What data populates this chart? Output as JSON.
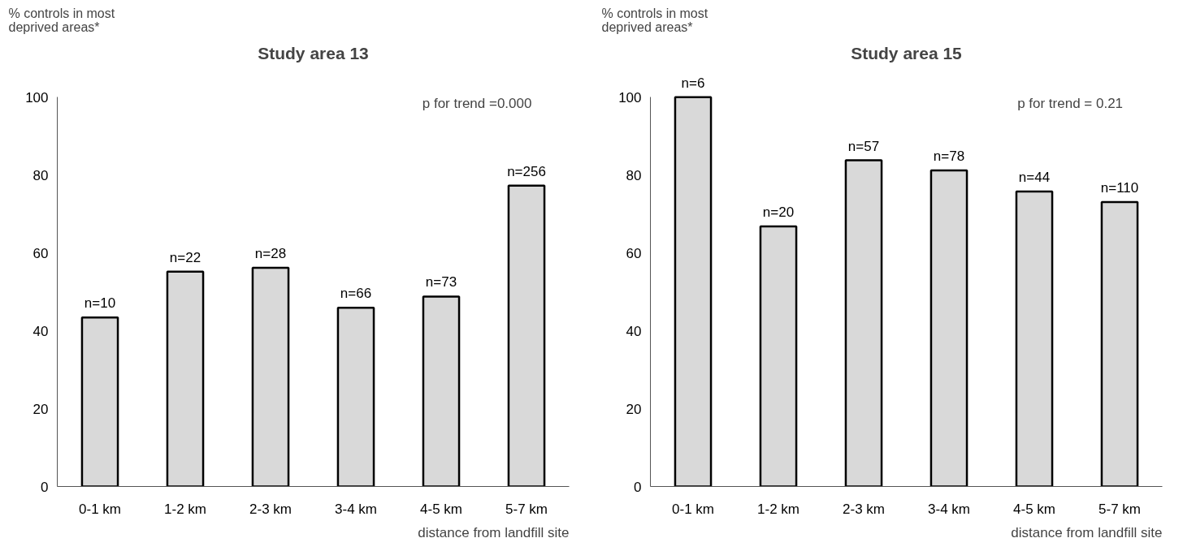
{
  "chart_data": [
    {
      "type": "bar",
      "title": "Study area 13",
      "ylabel": "% controls in most\ndeprived areas*",
      "xlabel": "distance from landfill site",
      "categories": [
        "0-1 km",
        "1-2 km",
        "2-3 km",
        "3-4 km",
        "4-5 km",
        "5-7 km"
      ],
      "values": [
        43.4,
        55.2,
        56.2,
        45.9,
        48.8,
        77.3
      ],
      "color": "#d9d9d9",
      "ylim": [
        0,
        100
      ],
      "yticks": [
        0,
        20,
        40,
        60,
        80,
        100
      ],
      "grid": false,
      "annotations": [
        "p for trend =0.000",
        {
          "text": "n=10",
          "x": "0-1 km",
          "y": 43.4
        },
        {
          "text": "n=22",
          "x": "1-2 km",
          "y": 55.2
        },
        {
          "text": "n=28",
          "x": "2-3 km",
          "y": 56.2
        },
        {
          "text": "n=66",
          "x": "3-4 km",
          "y": 45.9
        },
        {
          "text": "n=73",
          "x": "4-5 km",
          "y": 48.8
        },
        {
          "text": "n=256",
          "x": "5-7 km",
          "y": 77.3
        }
      ]
    },
    {
      "type": "bar",
      "title": "Study area 15",
      "ylabel": "% controls in most\ndeprived areas*",
      "xlabel": "distance from landfill site",
      "categories": [
        "0-1 km",
        "1-2 km",
        "2-3 km",
        "3-4 km",
        "4-5 km",
        "5-7 km"
      ],
      "values": [
        100,
        66.8,
        83.8,
        81.2,
        75.8,
        73.1
      ],
      "color": "#d9d9d9",
      "ylim": [
        0,
        100
      ],
      "yticks": [
        0,
        20,
        40,
        60,
        80,
        100
      ],
      "grid": false,
      "annotations": [
        "p for trend = 0.21",
        {
          "text": "n=6",
          "x": "0-1 km",
          "y": 100
        },
        {
          "text": "n=20",
          "x": "1-2 km",
          "y": 66.8
        },
        {
          "text": "n=57",
          "x": "2-3 km",
          "y": 83.8
        },
        {
          "text": "n=78",
          "x": "3-4 km",
          "y": 81.2
        },
        {
          "text": "n=44",
          "x": "4-5 km",
          "y": 75.8
        },
        {
          "text": "n=110",
          "x": "5-7 km",
          "y": 73.1
        }
      ]
    }
  ]
}
